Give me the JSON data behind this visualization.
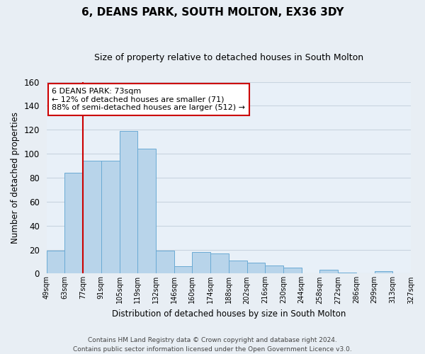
{
  "title": "6, DEANS PARK, SOUTH MOLTON, EX36 3DY",
  "subtitle": "Size of property relative to detached houses in South Molton",
  "xlabel": "Distribution of detached houses by size in South Molton",
  "ylabel": "Number of detached properties",
  "bar_values": [
    19,
    84,
    94,
    94,
    119,
    104,
    19,
    6,
    18,
    17,
    11,
    9,
    7,
    5,
    0,
    3,
    1,
    0,
    2,
    0
  ],
  "bin_labels": [
    "49sqm",
    "63sqm",
    "77sqm",
    "91sqm",
    "105sqm",
    "119sqm",
    "132sqm",
    "146sqm",
    "160sqm",
    "174sqm",
    "188sqm",
    "202sqm",
    "216sqm",
    "230sqm",
    "244sqm",
    "258sqm",
    "272sqm",
    "286sqm",
    "299sqm",
    "313sqm",
    "327sqm"
  ],
  "bar_color": "#b8d4ea",
  "bar_edge_color": "#6aaad4",
  "annotation_box_text_line1": "6 DEANS PARK: 73sqm",
  "annotation_box_text_line2": "← 12% of detached houses are smaller (71)",
  "annotation_box_text_line3": "88% of semi-detached houses are larger (512) →",
  "annotation_box_color": "#ffffff",
  "annotation_box_edge_color": "#cc0000",
  "annotation_line_color": "#cc0000",
  "ylim": [
    0,
    160
  ],
  "yticks": [
    0,
    20,
    40,
    60,
    80,
    100,
    120,
    140,
    160
  ],
  "footnote": "Contains HM Land Registry data © Crown copyright and database right 2024.\nContains public sector information licensed under the Open Government Licence v3.0.",
  "bg_color": "#e8eef4",
  "plot_bg_color": "#e8f0f8",
  "grid_color": "#c8d4e0"
}
